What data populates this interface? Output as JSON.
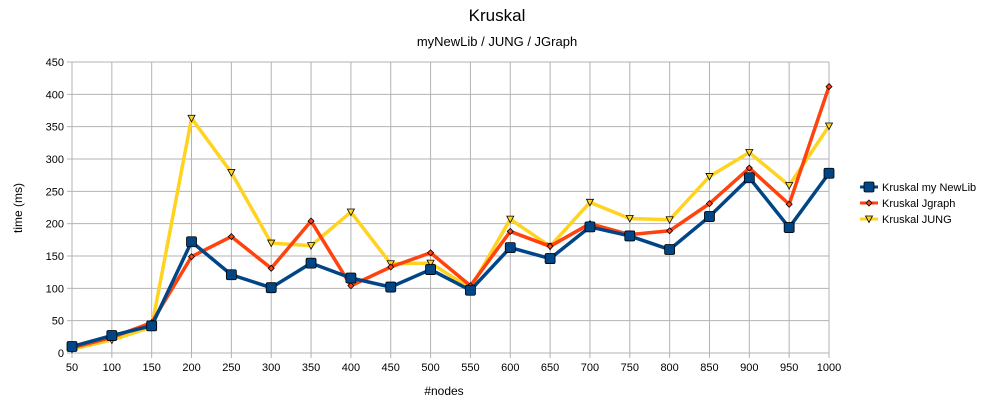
{
  "chart_data": {
    "type": "line",
    "title": "Kruskal",
    "subtitle": "myNewLib / JUNG / JGraph",
    "xlabel": "#nodes",
    "ylabel": "time (ms)",
    "ylim": [
      0,
      450
    ],
    "ytick_step": 50,
    "grid": true,
    "legend_position": "right",
    "categories": [
      "50",
      "100",
      "150",
      "200",
      "250",
      "300",
      "350",
      "400",
      "450",
      "500",
      "550",
      "600",
      "650",
      "700",
      "750",
      "800",
      "850",
      "900",
      "950",
      "1000"
    ],
    "series": [
      {
        "name": "Kruskal my NewLib",
        "color": "#004586",
        "marker": "square",
        "values": [
          10,
          27,
          42,
          172,
          121,
          101,
          139,
          116,
          102,
          129,
          97,
          163,
          146,
          195,
          181,
          160,
          211,
          271,
          194,
          278
        ]
      },
      {
        "name": "Kruskal Jgraph",
        "color": "#ff420e",
        "marker": "diamond",
        "values": [
          8,
          24,
          47,
          149,
          180,
          131,
          204,
          104,
          133,
          155,
          104,
          188,
          165,
          200,
          183,
          189,
          231,
          286,
          230,
          412
        ]
      },
      {
        "name": "Kruskal JUNG",
        "color": "#ffd320",
        "marker": "triangle-down",
        "values": [
          6,
          20,
          40,
          363,
          279,
          170,
          166,
          218,
          138,
          139,
          100,
          207,
          165,
          233,
          208,
          206,
          273,
          310,
          259,
          351
        ]
      }
    ]
  }
}
